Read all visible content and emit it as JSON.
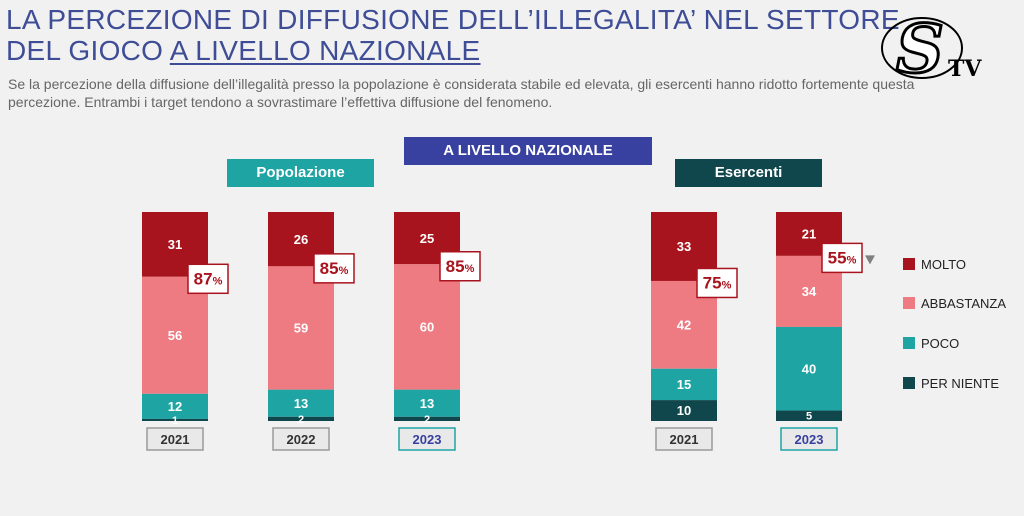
{
  "header": {
    "title_line1": "LA PERCEZIONE DI DIFFUSIONE DELL’ILLEGALITA’ NEL SETTORE",
    "title_line2_plain": "DEL GIOCO ",
    "title_line2_underlined": "A LIVELLO NAZIONALE",
    "subtitle": "Se la percezione della diffusione dell’illegalità presso la popolazione è considerata stabile ed elevata, gli esercenti hanno ridotto fortemente questa percezione. Entrambi i target tendono a sovrastimare l’effettiva diffusione del fenomeno."
  },
  "logo": {
    "letter": "S",
    "text": "TV"
  },
  "banners": {
    "main": "A LIVELLO NAZIONALE",
    "popolazione": "Popolazione",
    "esercenti": "Esercenti"
  },
  "colors": {
    "molto": "#a8141e",
    "abbastanza": "#ee7a82",
    "poco": "#1fa4a4",
    "per_niente": "#10474c",
    "banner_main": "#3840a0",
    "banner_pop": "#1fa4a4",
    "banner_eserc": "#10474c"
  },
  "chart_data": {
    "type": "bar",
    "stacked": true,
    "unit": "%",
    "legend": [
      "MOLTO",
      "ABBASTANZA",
      "POCO",
      "PER NIENTE"
    ],
    "legend_position": "right",
    "groups": [
      {
        "name": "Popolazione",
        "bars": [
          {
            "year": "2021",
            "molto": 31,
            "abbastanza": 56,
            "poco": 12,
            "per_niente": 1,
            "total": "87",
            "highlight": false
          },
          {
            "year": "2022",
            "molto": 26,
            "abbastanza": 59,
            "poco": 13,
            "per_niente": 2,
            "total": "85",
            "highlight": false
          },
          {
            "year": "2023",
            "molto": 25,
            "abbastanza": 60,
            "poco": 13,
            "per_niente": 2,
            "total": "85",
            "highlight": true
          }
        ]
      },
      {
        "name": "Esercenti",
        "bars": [
          {
            "year": "2021",
            "molto": 33,
            "abbastanza": 42,
            "poco": 15,
            "per_niente": 10,
            "total": "75",
            "highlight": false
          },
          {
            "year": "2023",
            "molto": 21,
            "abbastanza": 34,
            "poco": 40,
            "per_niente": 5,
            "total": "55",
            "highlight": true,
            "trend": "down"
          }
        ]
      }
    ]
  }
}
